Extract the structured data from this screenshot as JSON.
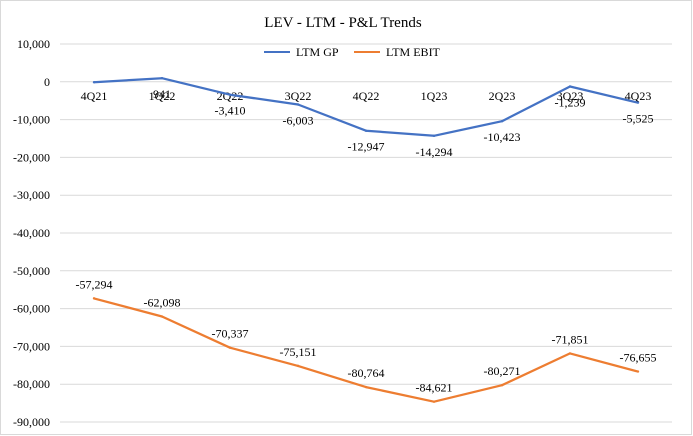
{
  "chart_data": {
    "type": "line",
    "title": "LEV - LTM - P&L Trends",
    "xlabel": "",
    "ylabel": "",
    "categories": [
      "4Q21",
      "1Q22",
      "2Q22",
      "3Q22",
      "4Q22",
      "1Q23",
      "2Q23",
      "3Q23",
      "4Q23"
    ],
    "series": [
      {
        "name": "LTM GP",
        "color": "#4472c4",
        "values": [
          -121,
          941,
          -3410,
          -6003,
          -12947,
          -14294,
          -10423,
          -1239,
          -5525
        ],
        "labels": [
          "",
          "941",
          "-3,410",
          "-6,003",
          "-12,947",
          "-14,294",
          "-10,423",
          "-1,239",
          "-5,525"
        ]
      },
      {
        "name": "LTM EBIT",
        "color": "#ed7d31",
        "values": [
          -57294,
          -62098,
          -70337,
          -75151,
          -80764,
          -84621,
          -80271,
          -71851,
          -76655
        ],
        "labels": [
          "-57,294",
          "-62,098",
          "-70,337",
          "-75,151",
          "-80,764",
          "-84,621",
          "-80,271",
          "-71,851",
          "-76,655"
        ]
      }
    ],
    "ylim": [
      -90000,
      10000
    ],
    "ytick_step": 10000,
    "ytick_labels": [
      "10,000",
      "0",
      "-10,000",
      "-20,000",
      "-30,000",
      "-40,000",
      "-50,000",
      "-60,000",
      "-70,000",
      "-80,000",
      "-90,000"
    ],
    "grid": true,
    "legend_position": "top-center",
    "gridline_color": "#d9d9d9"
  }
}
